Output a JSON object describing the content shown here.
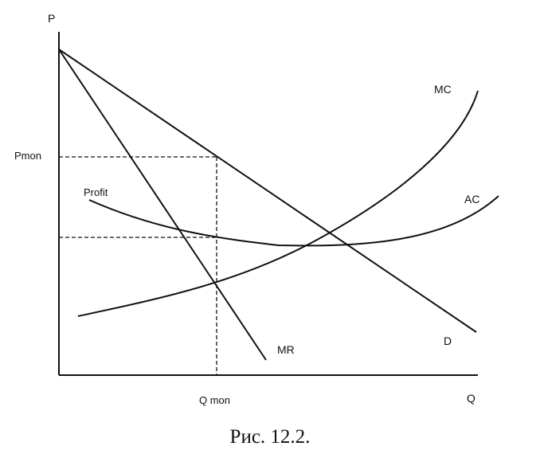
{
  "axes": {
    "y_label": "P",
    "x_label": "Q"
  },
  "ticks": {
    "price": "Pmon",
    "quantity": "Q mon"
  },
  "curves": {
    "mc": "MC",
    "ac": "AC",
    "demand": "D",
    "mr": "MR"
  },
  "annotations": {
    "profit": "Profit"
  },
  "caption": "Рис. 12.2."
}
